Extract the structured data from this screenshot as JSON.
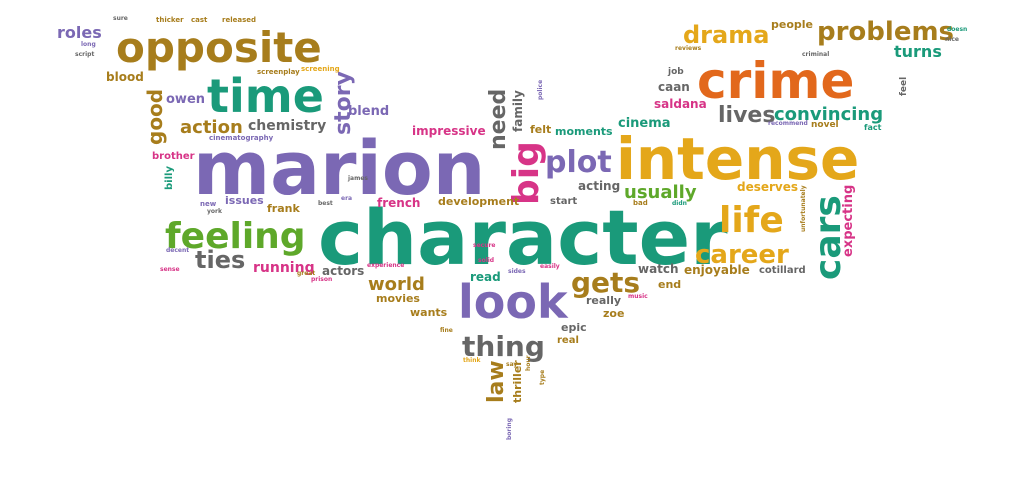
{
  "palette": {
    "purple": "#7b68b4",
    "teal": "#1a9a7a",
    "orange": "#e2681c",
    "gold": "#e4a71a",
    "olive": "#a77d1c",
    "pink": "#d73487",
    "green": "#5ea82a",
    "gray": "#666666"
  },
  "words": [
    {
      "text": "character",
      "color": "teal"
    },
    {
      "text": "marion",
      "color": "purple"
    },
    {
      "text": "intense",
      "color": "gold"
    },
    {
      "text": "crime",
      "color": "orange"
    },
    {
      "text": "opposite",
      "color": "olive"
    },
    {
      "text": "time",
      "color": "teal"
    },
    {
      "text": "look",
      "color": "purple"
    },
    {
      "text": "feeling",
      "color": "green"
    },
    {
      "text": "life",
      "color": "gold"
    },
    {
      "text": "cars",
      "color": "teal"
    },
    {
      "text": "plot",
      "color": "purple"
    },
    {
      "text": "big",
      "color": "pink"
    },
    {
      "text": "career",
      "color": "gold"
    },
    {
      "text": "thing",
      "color": "gray"
    },
    {
      "text": "gets",
      "color": "olive"
    },
    {
      "text": "problems",
      "color": "olive"
    },
    {
      "text": "drama",
      "color": "gold"
    },
    {
      "text": "ties",
      "color": "gray"
    },
    {
      "text": "story",
      "color": "purple"
    },
    {
      "text": "lives",
      "color": "gray"
    },
    {
      "text": "convincing",
      "color": "teal"
    },
    {
      "text": "usually",
      "color": "green"
    },
    {
      "text": "good",
      "color": "olive"
    },
    {
      "text": "action",
      "color": "olive"
    },
    {
      "text": "world",
      "color": "olive"
    },
    {
      "text": "need",
      "color": "gray"
    },
    {
      "text": "law",
      "color": "olive"
    },
    {
      "text": "roles",
      "color": "purple"
    },
    {
      "text": "turns",
      "color": "teal"
    },
    {
      "text": "chemistry",
      "color": "gray"
    },
    {
      "text": "running",
      "color": "pink"
    },
    {
      "text": "actors",
      "color": "gray"
    },
    {
      "text": "deserves",
      "color": "gold"
    },
    {
      "text": "expecting",
      "color": "pink"
    },
    {
      "text": "owen",
      "color": "purple"
    },
    {
      "text": "blood",
      "color": "olive"
    },
    {
      "text": "blend",
      "color": "purple"
    },
    {
      "text": "cinema",
      "color": "teal"
    },
    {
      "text": "acting",
      "color": "gray"
    },
    {
      "text": "saldana",
      "color": "pink"
    },
    {
      "text": "caan",
      "color": "gray"
    },
    {
      "text": "watch",
      "color": "gray"
    },
    {
      "text": "enjoyable",
      "color": "olive"
    },
    {
      "text": "cotillard",
      "color": "gray"
    },
    {
      "text": "people",
      "color": "olive"
    },
    {
      "text": "impressive",
      "color": "pink"
    },
    {
      "text": "moments",
      "color": "teal"
    },
    {
      "text": "felt",
      "color": "olive"
    },
    {
      "text": "family",
      "color": "gray"
    },
    {
      "text": "french",
      "color": "pink"
    },
    {
      "text": "development",
      "color": "olive"
    },
    {
      "text": "issues",
      "color": "purple"
    },
    {
      "text": "frank",
      "color": "olive"
    },
    {
      "text": "movies",
      "color": "olive"
    },
    {
      "text": "wants",
      "color": "olive"
    },
    {
      "text": "read",
      "color": "teal"
    },
    {
      "text": "really",
      "color": "gray"
    },
    {
      "text": "epic",
      "color": "gray"
    },
    {
      "text": "zoe",
      "color": "olive"
    },
    {
      "text": "real",
      "color": "olive"
    },
    {
      "text": "thriller",
      "color": "olive"
    },
    {
      "text": "end",
      "color": "olive"
    },
    {
      "text": "start",
      "color": "gray"
    },
    {
      "text": "brother",
      "color": "pink"
    },
    {
      "text": "billy",
      "color": "teal"
    },
    {
      "text": "job",
      "color": "gray"
    },
    {
      "text": "novel",
      "color": "olive"
    },
    {
      "text": "feel",
      "color": "gray"
    },
    {
      "text": "fact",
      "color": "teal"
    },
    {
      "text": "cinematography",
      "color": "purple"
    },
    {
      "text": "screenplay",
      "color": "olive"
    },
    {
      "text": "screening",
      "color": "gold"
    },
    {
      "text": "thicker",
      "color": "olive"
    },
    {
      "text": "cast",
      "color": "olive"
    },
    {
      "text": "released",
      "color": "olive"
    },
    {
      "text": "sure",
      "color": "gray"
    },
    {
      "text": "long",
      "color": "purple"
    },
    {
      "text": "script",
      "color": "gray"
    },
    {
      "text": "reviews",
      "color": "olive"
    },
    {
      "text": "criminal",
      "color": "gray"
    },
    {
      "text": "doesn",
      "color": "teal"
    },
    {
      "text": "nice",
      "color": "gray"
    },
    {
      "text": "recommend",
      "color": "purple"
    },
    {
      "text": "unfortunately",
      "color": "olive"
    },
    {
      "text": "bad",
      "color": "olive"
    },
    {
      "text": "didn",
      "color": "teal"
    },
    {
      "text": "police",
      "color": "purple"
    },
    {
      "text": "new",
      "color": "purple"
    },
    {
      "text": "york",
      "color": "gray"
    },
    {
      "text": "james",
      "color": "gray"
    },
    {
      "text": "best",
      "color": "gray"
    },
    {
      "text": "era",
      "color": "purple"
    },
    {
      "text": "decent",
      "color": "purple"
    },
    {
      "text": "sense",
      "color": "pink"
    },
    {
      "text": "experience",
      "color": "pink"
    },
    {
      "text": "great",
      "color": "olive"
    },
    {
      "text": "prison",
      "color": "pink"
    },
    {
      "text": "secure",
      "color": "pink"
    },
    {
      "text": "solid",
      "color": "pink"
    },
    {
      "text": "sides",
      "color": "purple"
    },
    {
      "text": "easily",
      "color": "pink"
    },
    {
      "text": "music",
      "color": "pink"
    },
    {
      "text": "fine",
      "color": "olive"
    },
    {
      "text": "think",
      "color": "gold"
    },
    {
      "text": "say",
      "color": "olive"
    },
    {
      "text": "type",
      "color": "olive"
    },
    {
      "text": "hour",
      "color": "olive"
    },
    {
      "text": "boring",
      "color": "purple"
    }
  ]
}
